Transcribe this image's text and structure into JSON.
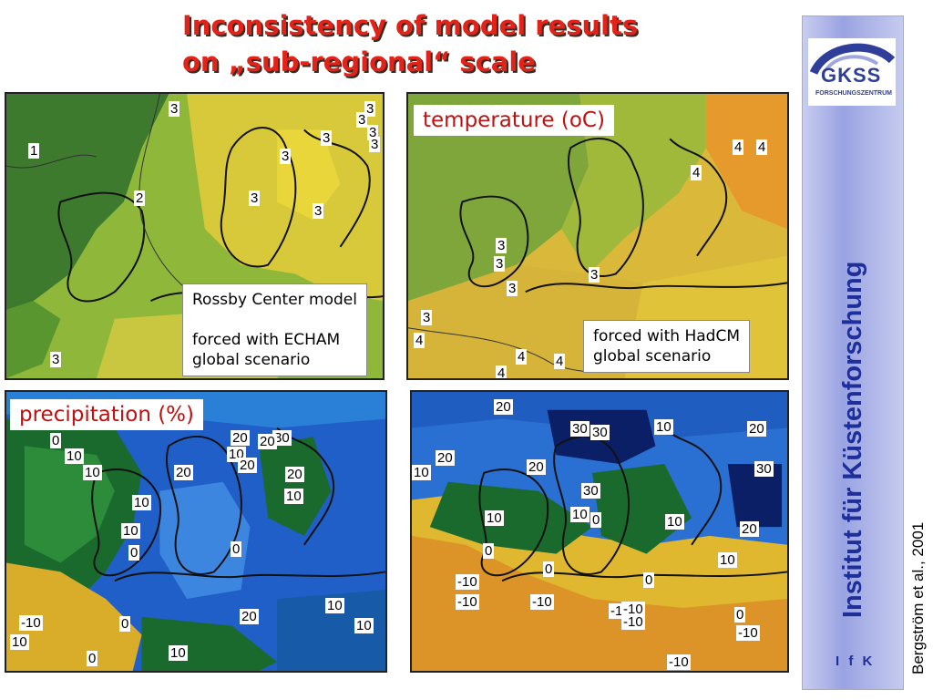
{
  "slide": {
    "title_line1": "Inconsistency of model results",
    "title_line2": "on „sub-regional“ scale"
  },
  "panels": {
    "temperature_label": "temperature (oC)",
    "precipitation_label": "precipitation (%)",
    "rossby_note": {
      "line1": "Rossby Center model",
      "line2": "forced with ECHAM",
      "line3": "global scenario"
    },
    "hadcm_note": {
      "line1": "forced with HadCM",
      "line2": "global scenario"
    },
    "contour_labels_tl": [
      "1",
      "2",
      "3",
      "3",
      "3",
      "3",
      "3",
      "3",
      "3",
      "3",
      "3",
      "3"
    ],
    "contour_labels_tr": [
      "3",
      "3",
      "3",
      "3",
      "3",
      "4",
      "4",
      "4",
      "4",
      "4",
      "4",
      "4"
    ],
    "contour_labels_bl": [
      "0",
      "10",
      "10",
      "10",
      "0",
      "20",
      "10",
      "30",
      "20",
      "20",
      "20",
      "20",
      "0",
      "10",
      "10",
      "20",
      "10",
      "-10",
      "0",
      "10",
      "10",
      "0",
      "10"
    ],
    "contour_labels_br": [
      "20",
      "30",
      "30",
      "10",
      "20",
      "10",
      "20",
      "20",
      "30",
      "30",
      "10",
      "10",
      "0",
      "10",
      "20",
      "0",
      "0",
      "-10",
      "-10",
      "-10",
      "0",
      "-1",
      "-10",
      "-10",
      "0",
      "-10",
      "-10",
      "10"
    ]
  },
  "sidebar": {
    "logo_text": "GKSS",
    "logo_subtext": "FORSCHUNGSZENTRUM",
    "institute": "Institut für Küstenforschung",
    "ifk": "I f K"
  },
  "citation": "Bergström et al., 2001",
  "colors": {
    "title": "#e2231a",
    "label_text": "#c01010",
    "sidebar_text": "#1f2f9a"
  }
}
